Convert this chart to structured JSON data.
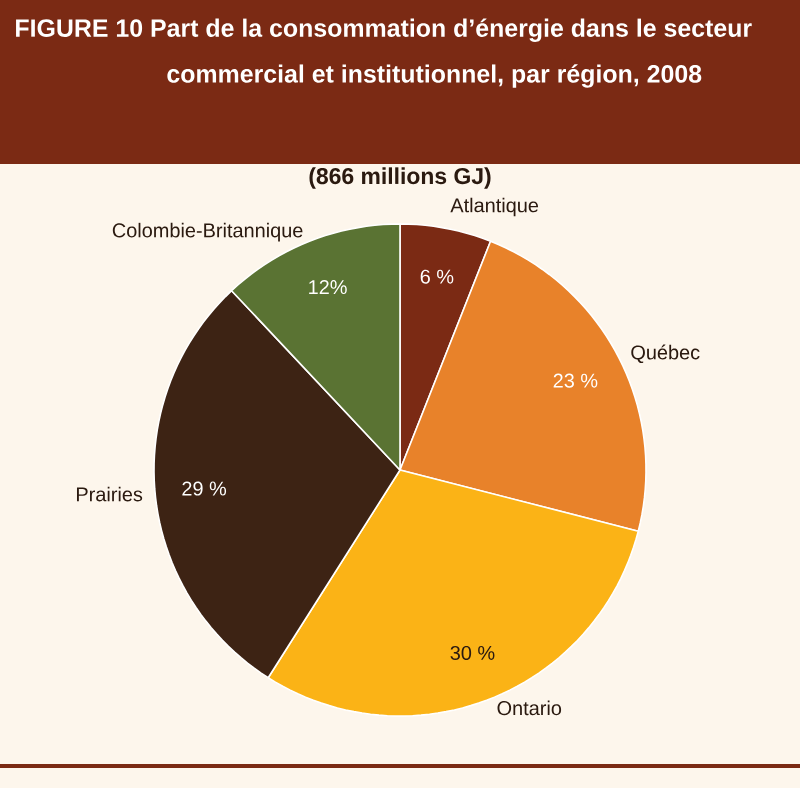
{
  "chart_data": {
    "type": "pie",
    "title": "FIGURE 10 Part de la consommation d’énergie dans le secteur commercial et institutionnel, par région, 2008",
    "subtitle": "(866 millions GJ)",
    "categories": [
      "Atlantique",
      "Québec",
      "Ontario",
      "Prairies",
      "Colombie-Britannique"
    ],
    "values": [
      6,
      23,
      30,
      29,
      12
    ],
    "value_labels": [
      "6 %",
      "23 %",
      "30 %",
      "29 %",
      "12%"
    ],
    "colors": [
      "#7b2a14",
      "#e8822a",
      "#fbb316",
      "#3d2314",
      "#5a7333"
    ]
  }
}
